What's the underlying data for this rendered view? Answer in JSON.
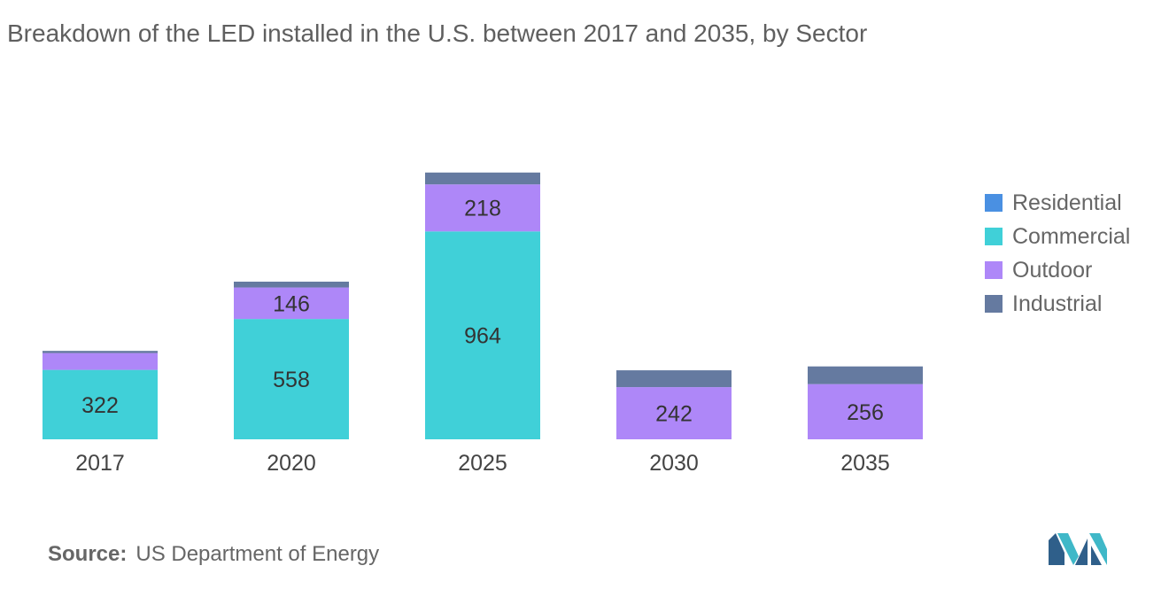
{
  "title": "Breakdown of the LED installed in the U.S. between 2017 and 2035, by Sector",
  "source": {
    "label": "Source:",
    "text": "US Department of Energy"
  },
  "chart_data": {
    "type": "bar",
    "stacked": true,
    "title": "Breakdown of the LED installed in the U.S. between 2017 and 2035, by Sector",
    "xlabel": "",
    "ylabel": "",
    "categories": [
      "2017",
      "2020",
      "2025",
      "2030",
      "2035"
    ],
    "series": [
      {
        "name": "Residential",
        "color": "#4a90e2",
        "values": [
          0,
          0,
          0,
          0,
          0
        ],
        "labels": [
          "",
          "",
          "",
          "",
          ""
        ]
      },
      {
        "name": "Commercial",
        "color": "#40d0d8",
        "values": [
          322,
          558,
          964,
          0,
          0
        ],
        "labels": [
          "322",
          "558",
          "964",
          "",
          ""
        ]
      },
      {
        "name": "Outdoor",
        "color": "#ae87f8",
        "values": [
          78,
          146,
          218,
          242,
          256
        ],
        "labels": [
          "",
          "146",
          "218",
          "242",
          "256"
        ]
      },
      {
        "name": "Industrial",
        "color": "#657aa0",
        "values": [
          10,
          27,
          55,
          78,
          82
        ],
        "labels": [
          "",
          "",
          "",
          "",
          ""
        ]
      }
    ],
    "ylim": [
      0,
      1400
    ],
    "grid": false,
    "legend_position": "right"
  }
}
